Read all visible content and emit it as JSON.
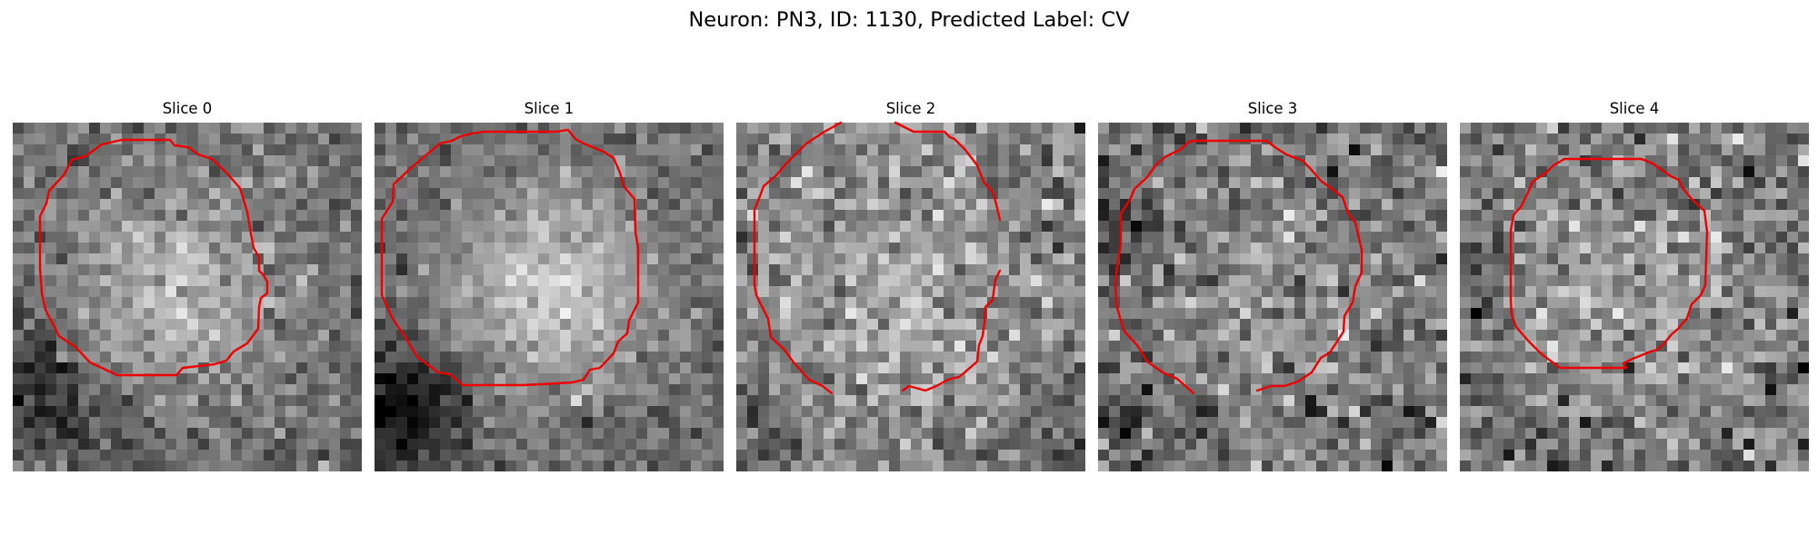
{
  "figure": {
    "suptitle": "Neuron: PN3, ID: 1130, Predicted Label: CV",
    "contour_color": "#ee0000",
    "panels": [
      {
        "title": "Slice 0"
      },
      {
        "title": "Slice 1"
      },
      {
        "title": "Slice 2"
      },
      {
        "title": "Slice 3"
      },
      {
        "title": "Slice 4"
      }
    ]
  }
}
